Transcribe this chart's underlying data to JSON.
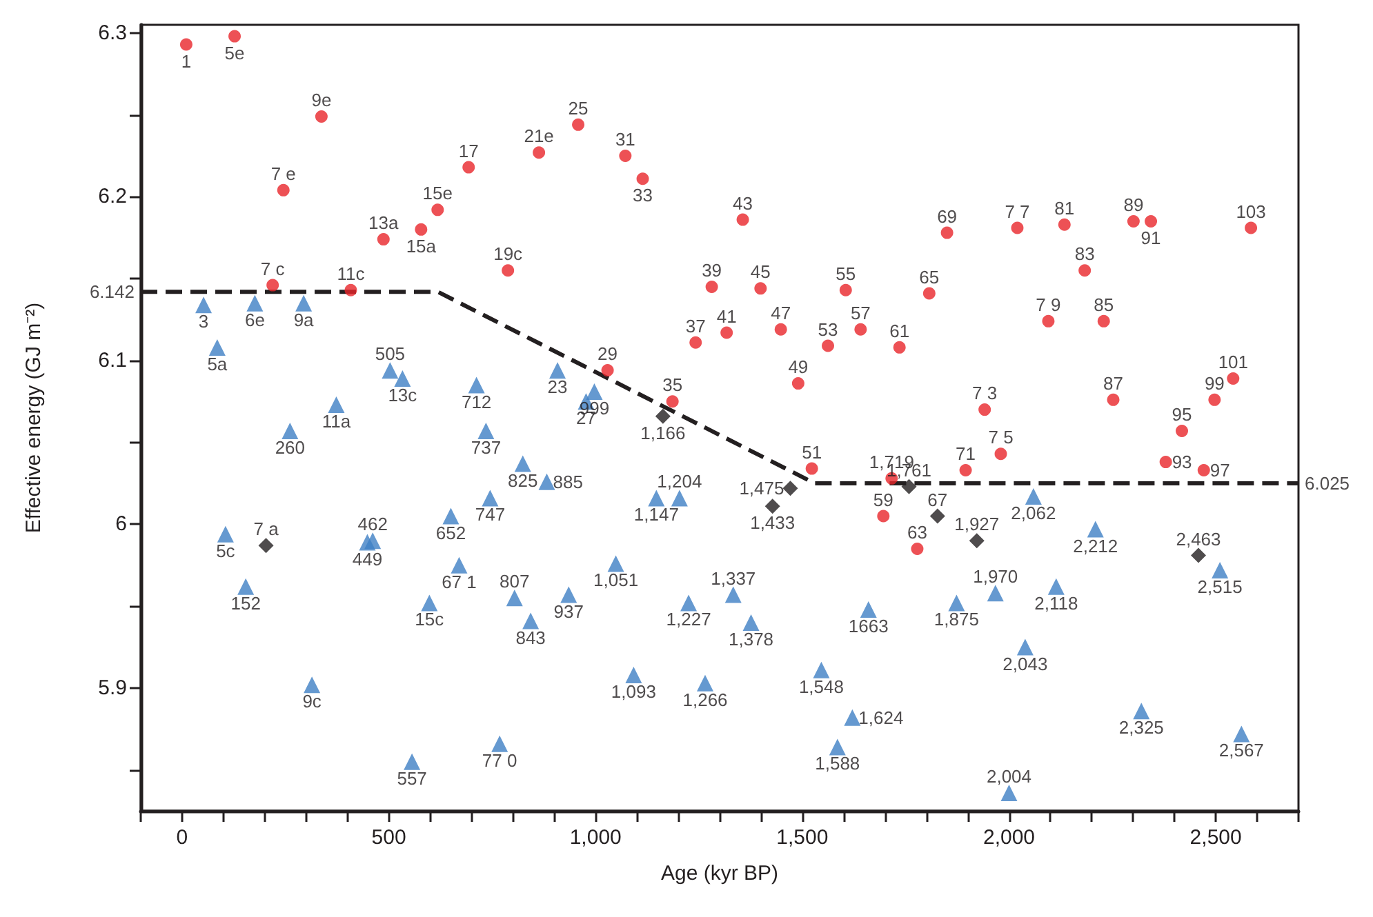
{
  "chart_data": {
    "type": "scatter",
    "xlabel": "Age (kyr BP)",
    "ylabel": "Effective energy (GJ m⁻²)",
    "xlim": [
      -100,
      2700
    ],
    "xticks": [
      {
        "value": -100,
        "label": null
      },
      0,
      {
        "value": 100,
        "label": null
      },
      {
        "value": 200,
        "label": null
      },
      {
        "value": 300,
        "label": null
      },
      {
        "value": 400,
        "label": null
      },
      500,
      {
        "value": 600,
        "label": null
      },
      {
        "value": 700,
        "label": null
      },
      {
        "value": 800,
        "label": null
      },
      {
        "value": 900,
        "label": null
      },
      {
        "value": 1000,
        "label": "1,000"
      },
      {
        "value": 1100,
        "label": null
      },
      {
        "value": 1200,
        "label": null
      },
      {
        "value": 1300,
        "label": null
      },
      {
        "value": 1400,
        "label": null
      },
      {
        "value": 1500,
        "label": "1,500"
      },
      {
        "value": 1600,
        "label": null
      },
      {
        "value": 1700,
        "label": null
      },
      {
        "value": 1800,
        "label": null
      },
      {
        "value": 1900,
        "label": null
      },
      {
        "value": 2000,
        "label": "2,000"
      },
      {
        "value": 2100,
        "label": null
      },
      {
        "value": 2200,
        "label": null
      },
      {
        "value": 2300,
        "label": null
      },
      {
        "value": 2400,
        "label": null
      },
      {
        "value": 2500,
        "label": "2,500"
      },
      {
        "value": 2600,
        "label": null
      },
      {
        "value": 2700,
        "label": null
      }
    ],
    "ylim": [
      5.825,
      6.305
    ],
    "grid": false,
    "yticks": [
      {
        "value": 5.85,
        "label": null
      },
      5.9,
      {
        "value": 5.95,
        "label": null
      },
      6.0,
      {
        "value": 6.05,
        "label": null
      },
      6.1,
      {
        "value": 6.15,
        "label": null
      },
      6.2,
      {
        "value": 6.25,
        "label": null
      },
      6.3
    ],
    "annotations": [
      {
        "text": "6.142",
        "x": -100,
        "y": 6.142
      },
      {
        "text": "6.025",
        "x": 2700,
        "y": 6.025
      },
      {
        "text": "1",
        "x": 10,
        "y": 6.293
      },
      {
        "text": "5e",
        "x": 127,
        "y": 6.298
      },
      {
        "text": "9e",
        "x": 337,
        "y": 6.249
      },
      {
        "text": "7 e",
        "x": 245,
        "y": 6.204
      },
      {
        "text": "17",
        "x": 693,
        "y": 6.218
      },
      {
        "text": "21e",
        "x": 863,
        "y": 6.227
      },
      {
        "text": "15e",
        "x": 618,
        "y": 6.192
      },
      {
        "text": "13a",
        "x": 487,
        "y": 6.174
      },
      {
        "text": "15a",
        "x": 578,
        "y": 6.18
      },
      {
        "text": "19c",
        "x": 788,
        "y": 6.155
      },
      {
        "text": "7 c",
        "x": 219,
        "y": 6.146
      },
      {
        "text": "11c",
        "x": 408,
        "y": 6.143
      },
      {
        "text": "25",
        "x": 958,
        "y": 6.244
      },
      {
        "text": "31",
        "x": 1072,
        "y": 6.225
      },
      {
        "text": "33",
        "x": 1114,
        "y": 6.211
      },
      {
        "text": "43",
        "x": 1356,
        "y": 6.186
      },
      {
        "text": "39",
        "x": 1281,
        "y": 6.145
      },
      {
        "text": "45",
        "x": 1399,
        "y": 6.144
      },
      {
        "text": "55",
        "x": 1605,
        "y": 6.143
      },
      {
        "text": "65",
        "x": 1807,
        "y": 6.141
      },
      {
        "text": "37",
        "x": 1242,
        "y": 6.111
      },
      {
        "text": "41",
        "x": 1317,
        "y": 6.117
      },
      {
        "text": "47",
        "x": 1448,
        "y": 6.119
      },
      {
        "text": "53",
        "x": 1562,
        "y": 6.109
      },
      {
        "text": "57",
        "x": 1641,
        "y": 6.119
      },
      {
        "text": "49",
        "x": 1490,
        "y": 6.086
      },
      {
        "text": "29",
        "x": 1029,
        "y": 6.094
      },
      {
        "text": "35",
        "x": 1186,
        "y": 6.075
      },
      {
        "text": "7 7",
        "x": 2020,
        "y": 6.181
      },
      {
        "text": "81",
        "x": 2134,
        "y": 6.183
      },
      {
        "text": "89",
        "x": 2301,
        "y": 6.185
      },
      {
        "text": "91",
        "x": 2343,
        "y": 6.185
      },
      {
        "text": "103",
        "x": 2585,
        "y": 6.181
      },
      {
        "text": "83",
        "x": 2183,
        "y": 6.155
      },
      {
        "text": "7 9",
        "x": 2095,
        "y": 6.124
      },
      {
        "text": "85",
        "x": 2229,
        "y": 6.124
      },
      {
        "text": "101",
        "x": 2542,
        "y": 6.089
      },
      {
        "text": "87",
        "x": 2252,
        "y": 6.076
      },
      {
        "text": "99",
        "x": 2497,
        "y": 6.076
      },
      {
        "text": "7 3",
        "x": 1941,
        "y": 6.07
      },
      {
        "text": "95",
        "x": 2418,
        "y": 6.057
      },
      {
        "text": "7 5",
        "x": 1980,
        "y": 6.043
      },
      {
        "text": "93",
        "x": 2379,
        "y": 6.038
      },
      {
        "text": "97",
        "x": 2471,
        "y": 6.033
      },
      {
        "text": "51",
        "x": 1523,
        "y": 6.034
      },
      {
        "text": "1,719",
        "x": 1716,
        "y": 6.028
      },
      {
        "text": "59",
        "x": 1696,
        "y": 6.005
      },
      {
        "text": "63",
        "x": 1778,
        "y": 5.985
      },
      {
        "text": "61",
        "x": 1735,
        "y": 6.108
      },
      {
        "text": "69",
        "x": 1850,
        "y": 6.178
      },
      {
        "text": "71",
        "x": 1895,
        "y": 6.033
      },
      {
        "text": "3",
        "x": 52,
        "y": 6.134
      },
      {
        "text": "6e",
        "x": 176,
        "y": 6.135
      },
      {
        "text": "9a",
        "x": 294,
        "y": 6.135
      },
      {
        "text": "5a",
        "x": 85,
        "y": 6.108
      },
      {
        "text": "505",
        "x": 503,
        "y": 6.094
      },
      {
        "text": "13c",
        "x": 533,
        "y": 6.089
      },
      {
        "text": "712",
        "x": 712,
        "y": 6.085
      },
      {
        "text": "11a",
        "x": 373,
        "y": 6.073
      },
      {
        "text": "260",
        "x": 261,
        "y": 6.057
      },
      {
        "text": "737",
        "x": 735,
        "y": 6.057
      },
      {
        "text": "825",
        "x": 824,
        "y": 6.037
      },
      {
        "text": "885",
        "x": 882,
        "y": 6.026
      },
      {
        "text": "23",
        "x": 908,
        "y": 6.094
      },
      {
        "text": "27",
        "x": 977,
        "y": 6.075
      },
      {
        "text": "999",
        "x": 997,
        "y": 6.081
      },
      {
        "text": "747",
        "x": 745,
        "y": 6.016
      },
      {
        "text": "652",
        "x": 650,
        "y": 6.005
      },
      {
        "text": "462",
        "x": 461,
        "y": 5.99
      },
      {
        "text": "449",
        "x": 448,
        "y": 5.989
      },
      {
        "text": "5c",
        "x": 105,
        "y": 5.994
      },
      {
        "text": "152",
        "x": 154,
        "y": 5.962
      },
      {
        "text": "67 1",
        "x": 670,
        "y": 5.975
      },
      {
        "text": "15c",
        "x": 598,
        "y": 5.952
      },
      {
        "text": "807",
        "x": 804,
        "y": 5.955
      },
      {
        "text": "843",
        "x": 843,
        "y": 5.941
      },
      {
        "text": "937",
        "x": 935,
        "y": 5.957
      },
      {
        "text": "1,051",
        "x": 1049,
        "y": 5.976
      },
      {
        "text": "1,147",
        "x": 1147,
        "y": 6.016
      },
      {
        "text": "1,204",
        "x": 1203,
        "y": 6.016
      },
      {
        "text": "9c",
        "x": 314,
        "y": 5.902
      },
      {
        "text": "557",
        "x": 556,
        "y": 5.855
      },
      {
        "text": "77 0",
        "x": 768,
        "y": 5.866
      },
      {
        "text": "1,093",
        "x": 1092,
        "y": 5.908
      },
      {
        "text": "1,227",
        "x": 1225,
        "y": 5.952
      },
      {
        "text": "1,266",
        "x": 1265,
        "y": 5.903
      },
      {
        "text": "1,337",
        "x": 1333,
        "y": 5.957
      },
      {
        "text": "1,378",
        "x": 1376,
        "y": 5.94
      },
      {
        "text": "1,548",
        "x": 1546,
        "y": 5.911
      },
      {
        "text": "1,588",
        "x": 1585,
        "y": 5.864
      },
      {
        "text": "1663",
        "x": 1660,
        "y": 5.948
      },
      {
        "text": "1,875",
        "x": 1873,
        "y": 5.952
      },
      {
        "text": "1,970",
        "x": 1967,
        "y": 5.958
      },
      {
        "text": "2,043",
        "x": 2039,
        "y": 5.925
      },
      {
        "text": "2,118",
        "x": 2114,
        "y": 5.962
      },
      {
        "text": "2,062",
        "x": 2059,
        "y": 6.017
      },
      {
        "text": "2,004",
        "x": 2000,
        "y": 5.836
      },
      {
        "text": "2,325",
        "x": 2320,
        "y": 5.886
      },
      {
        "text": "2,515",
        "x": 2510,
        "y": 5.972
      },
      {
        "text": "2,567",
        "x": 2562,
        "y": 5.872
      },
      {
        "text": "1,624",
        "x": 1621,
        "y": 5.882
      },
      {
        "text": "2,212",
        "x": 2209,
        "y": 5.997
      },
      {
        "text": "7 a",
        "x": 203,
        "y": 5.987
      },
      {
        "text": "1,166",
        "x": 1163,
        "y": 6.066
      },
      {
        "text": "1,433",
        "x": 1428,
        "y": 6.011
      },
      {
        "text": "1,475",
        "x": 1471,
        "y": 6.022
      },
      {
        "text": "1,761",
        "x": 1758,
        "y": 6.023
      },
      {
        "text": "1,927",
        "x": 1922,
        "y": 5.99
      },
      {
        "text": "2,463",
        "x": 2458,
        "y": 5.981
      },
      {
        "text": "67",
        "x": 1827,
        "y": 6.005
      }
    ],
    "series": [
      {
        "marker": "circle",
        "color": "#e8262a",
        "x": [
          10,
          127,
          337,
          245,
          693,
          863,
          618,
          487,
          578,
          788,
          219,
          408,
          958,
          1072,
          1114,
          1356,
          1281,
          1399,
          1605,
          1807,
          1242,
          1317,
          1448,
          1562,
          1641,
          1490,
          1029,
          1186,
          2020,
          2134,
          2301,
          2343,
          2585,
          2183,
          2095,
          2229,
          2542,
          2252,
          2497,
          1941,
          2418,
          1980,
          2379,
          2471,
          1523,
          1716,
          1696,
          1778,
          1735,
          1850,
          1895
        ],
        "values": [
          6.293,
          6.298,
          6.249,
          6.204,
          6.218,
          6.227,
          6.192,
          6.174,
          6.18,
          6.155,
          6.146,
          6.143,
          6.244,
          6.225,
          6.211,
          6.186,
          6.145,
          6.144,
          6.143,
          6.141,
          6.111,
          6.117,
          6.119,
          6.109,
          6.119,
          6.086,
          6.094,
          6.075,
          6.181,
          6.183,
          6.185,
          6.185,
          6.181,
          6.155,
          6.124,
          6.124,
          6.089,
          6.076,
          6.076,
          6.07,
          6.057,
          6.043,
          6.038,
          6.033,
          6.034,
          6.028,
          6.005,
          5.985,
          6.108,
          6.178,
          6.033
        ]
      },
      {
        "marker": "triangle",
        "color": "#3f7fc4",
        "x": [
          52,
          176,
          294,
          85,
          503,
          533,
          712,
          373,
          261,
          735,
          824,
          882,
          908,
          977,
          997,
          745,
          650,
          461,
          448,
          105,
          154,
          670,
          598,
          804,
          843,
          935,
          1049,
          1147,
          1203,
          314,
          556,
          768,
          1092,
          1225,
          1265,
          1333,
          1376,
          1546,
          1585,
          1660,
          1873,
          1967,
          2039,
          2114,
          2059,
          2000,
          2320,
          2510,
          2562,
          1621,
          2209
        ],
        "values": [
          6.134,
          6.135,
          6.135,
          6.108,
          6.094,
          6.089,
          6.085,
          6.073,
          6.057,
          6.057,
          6.037,
          6.026,
          6.094,
          6.075,
          6.081,
          6.016,
          6.005,
          5.99,
          5.989,
          5.994,
          5.962,
          5.975,
          5.952,
          5.955,
          5.941,
          5.957,
          5.976,
          6.016,
          6.016,
          5.902,
          5.855,
          5.866,
          5.908,
          5.952,
          5.903,
          5.957,
          5.94,
          5.911,
          5.864,
          5.948,
          5.952,
          5.958,
          5.925,
          5.962,
          6.017,
          5.836,
          5.886,
          5.972,
          5.872,
          5.882,
          5.997
        ]
      },
      {
        "marker": "diamond",
        "color": "#231f20",
        "x": [
          203,
          1163,
          1428,
          1471,
          1758,
          1922,
          2458,
          1827
        ],
        "values": [
          5.987,
          6.066,
          6.011,
          6.022,
          6.023,
          5.99,
          5.981,
          6.005
        ]
      },
      {
        "type": "line",
        "marker": "none",
        "line_style": "dashed",
        "color": "#231f20",
        "x": [
          -100,
          618,
          1530,
          2700
        ],
        "values": [
          6.142,
          6.142,
          6.025,
          6.025
        ]
      }
    ]
  }
}
